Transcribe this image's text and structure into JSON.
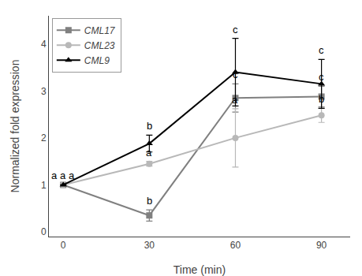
{
  "chart_data": {
    "type": "line",
    "xlabel": "Time (min)",
    "ylabel": "Normalized fold expression",
    "x": [
      0,
      30,
      60,
      90
    ],
    "series": [
      {
        "name": "CML17",
        "color": "#808080",
        "marker": "square",
        "values": [
          1.0,
          0.35,
          2.85,
          2.88
        ],
        "errors": [
          0.0,
          0.12,
          0.3,
          0.22
        ]
      },
      {
        "name": "CML23",
        "color": "#b8b8b8",
        "marker": "circle",
        "values": [
          1.0,
          1.45,
          2.0,
          2.48
        ],
        "errors": [
          0.0,
          0.05,
          0.62,
          0.15
        ]
      },
      {
        "name": "CML9",
        "color": "#000000",
        "marker": "triangle-up",
        "values": [
          1.0,
          1.88,
          3.4,
          3.15
        ],
        "errors": [
          0.0,
          0.18,
          0.72,
          0.52
        ]
      }
    ],
    "xlim": [
      -5,
      100
    ],
    "xticks": [
      0,
      30,
      60,
      90
    ],
    "ylim": [
      -0.1,
      4.6
    ],
    "yticks": [
      0,
      1,
      2,
      3,
      4
    ],
    "grid": false,
    "legend": "upper left",
    "annotations": [
      {
        "text": "a",
        "x": 0,
        "y": 1.0
      },
      {
        "text": "b",
        "x": 30,
        "y": 0.47
      },
      {
        "text": "c",
        "x": 60,
        "y": 3.15
      },
      {
        "text": "c",
        "x": 90,
        "y": 3.1
      },
      {
        "text": "a",
        "x": 0,
        "y": 1.0
      },
      {
        "text": "a",
        "x": 30,
        "y": 1.5
      },
      {
        "text": "a",
        "x": 60,
        "y": 2.62
      },
      {
        "text": "b",
        "x": 90,
        "y": 2.63
      },
      {
        "text": "a",
        "x": 0,
        "y": 1.0
      },
      {
        "text": "b",
        "x": 30,
        "y": 2.06
      },
      {
        "text": "c",
        "x": 60,
        "y": 4.12
      },
      {
        "text": "c",
        "x": 90,
        "y": 3.67
      }
    ]
  }
}
